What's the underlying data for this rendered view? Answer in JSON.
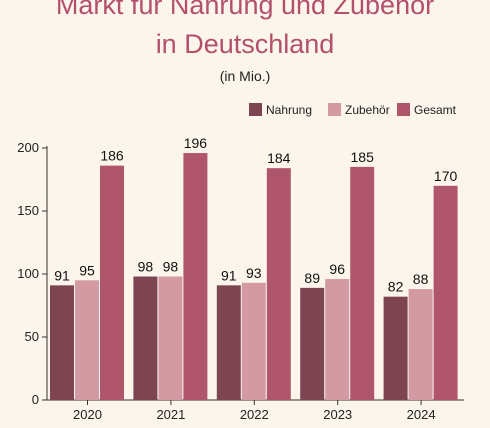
{
  "title_line1": "Markt für Nahrung und Zubehör",
  "title_line2": "in Deutschland",
  "subtitle": "(in Mio.)",
  "chart_data": {
    "type": "bar",
    "categories": [
      "2020",
      "2021",
      "2022",
      "2023",
      "2024"
    ],
    "series": [
      {
        "name": "Nahrung",
        "color": "#7d4452",
        "values": [
          91,
          98,
          91,
          89,
          82
        ]
      },
      {
        "name": "Zubehör",
        "color": "#d49aa4",
        "values": [
          95,
          98,
          93,
          96,
          88
        ]
      },
      {
        "name": "Gesamt",
        "color": "#b0566c",
        "values": [
          186,
          196,
          184,
          185,
          170
        ]
      }
    ],
    "ylim": [
      0,
      200
    ],
    "yticks": [
      0,
      50,
      100,
      150,
      200
    ],
    "grid": false,
    "legend": "top-right",
    "xlabel": "",
    "ylabel": ""
  }
}
